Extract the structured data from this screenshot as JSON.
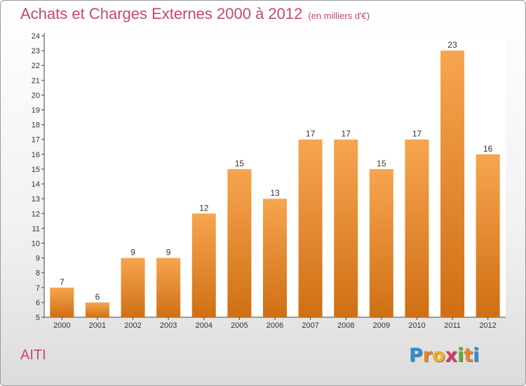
{
  "header": {
    "title": "Achats et Charges Externes 2000 à 2012",
    "unit": "(en milliers d'€)"
  },
  "footer": {
    "commune": "AITI"
  },
  "logo": {
    "letters": [
      "P",
      "r",
      "o",
      "x",
      "i",
      "t",
      "i"
    ],
    "colors": [
      "#2f8fd0",
      "#e8842a",
      "#f0b020",
      "#d23b6b",
      "#58b030",
      "#e8842a",
      "#2f8fd0"
    ]
  },
  "colors": {
    "bar_top": "#f7a550",
    "bar_bottom": "#cf6f14",
    "title": "#c74a63"
  },
  "chart_data": {
    "type": "bar",
    "categories": [
      "2000",
      "2001",
      "2002",
      "2003",
      "2004",
      "2005",
      "2006",
      "2007",
      "2008",
      "2009",
      "2010",
      "2011",
      "2012"
    ],
    "values": [
      7,
      6,
      9,
      9,
      12,
      15,
      13,
      17,
      17,
      15,
      17,
      23,
      16
    ],
    "title": "Achats et Charges Externes 2000 à 2012",
    "ylim": [
      5,
      24
    ],
    "yticks": [
      5,
      6,
      7,
      8,
      9,
      10,
      11,
      12,
      13,
      14,
      15,
      16,
      17,
      18,
      19,
      20,
      21,
      22,
      23,
      24
    ],
    "grid": false,
    "legend": "none"
  }
}
